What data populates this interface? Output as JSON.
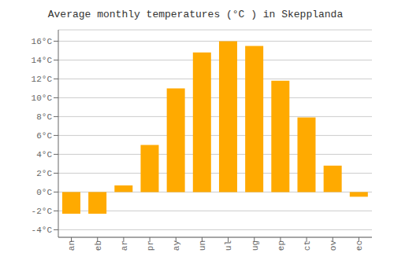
{
  "chart_data": {
    "type": "bar",
    "title": "Average monthly temperatures (°C ) in Skepplanda",
    "categories": [
      "an",
      "eb",
      "ar",
      "pr",
      "ay",
      "un",
      "ul",
      "ug",
      "ep",
      "ct",
      "ov",
      "ec"
    ],
    "values": [
      -2.3,
      -2.3,
      0.7,
      5.0,
      11.0,
      14.8,
      16.0,
      15.5,
      11.8,
      7.9,
      2.8,
      -0.5
    ],
    "color": "#FFAA00",
    "ylim": [
      -4.8,
      17.2
    ],
    "yticks": [
      {
        "value": -4,
        "label": "-4°C"
      },
      {
        "value": -2,
        "label": "-2°C"
      },
      {
        "value": 0,
        "label": "0°C"
      },
      {
        "value": 2,
        "label": "2°C"
      },
      {
        "value": 4,
        "label": "4°C"
      },
      {
        "value": 6,
        "label": "6°C"
      },
      {
        "value": 8,
        "label": "8°C"
      },
      {
        "value": 10,
        "label": "10°C"
      },
      {
        "value": 12,
        "label": "12°C"
      },
      {
        "value": 14,
        "label": "14°C"
      },
      {
        "value": 16,
        "label": "16°C"
      }
    ],
    "grid": true
  }
}
